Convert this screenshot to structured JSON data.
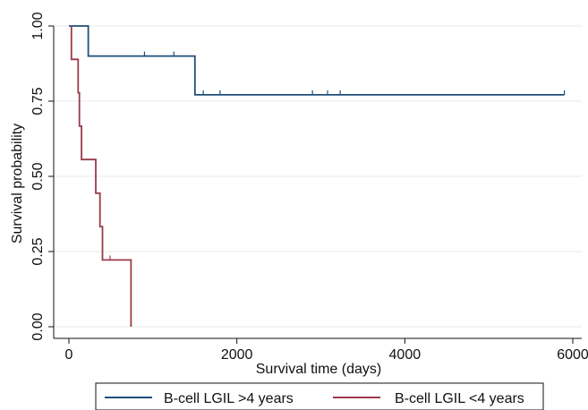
{
  "chart_data": {
    "type": "line",
    "step": true,
    "xlabel": "Survival time (days)",
    "ylabel": "Survival probability",
    "xlim": [
      0,
      6000
    ],
    "ylim": [
      0,
      1
    ],
    "x_ticks": [
      0,
      2000,
      4000,
      6000
    ],
    "x_tick_labels": [
      "0",
      "2000",
      "4000",
      "6000"
    ],
    "y_ticks": [
      0,
      0.25,
      0.5,
      0.75,
      1.0
    ],
    "y_tick_labels": [
      "0.00",
      "0.25",
      "0.50",
      "0.75",
      "1.00"
    ],
    "grid": "horizontal",
    "legend_position": "bottom",
    "series": [
      {
        "name": "B-cell LGIL >4 years",
        "color": "#1f4e79",
        "points": [
          [
            0,
            1.0
          ],
          [
            230,
            1.0
          ],
          [
            230,
            0.9
          ],
          [
            1500,
            0.9
          ],
          [
            1500,
            0.771
          ],
          [
            5900,
            0.771
          ]
        ],
        "end_drop_to_zero": false,
        "censor_marks": [
          [
            900,
            0.9
          ],
          [
            1250,
            0.9
          ],
          [
            1600,
            0.771
          ],
          [
            1800,
            0.771
          ],
          [
            2900,
            0.771
          ],
          [
            3080,
            0.771
          ],
          [
            3230,
            0.771
          ],
          [
            5900,
            0.771
          ]
        ]
      },
      {
        "name": "B-cell LGIL <4 years",
        "color": "#9b3a4a",
        "points": [
          [
            30,
            1.0
          ],
          [
            30,
            0.889
          ],
          [
            110,
            0.889
          ],
          [
            110,
            0.778
          ],
          [
            125,
            0.778
          ],
          [
            125,
            0.667
          ],
          [
            150,
            0.667
          ],
          [
            150,
            0.556
          ],
          [
            320,
            0.556
          ],
          [
            320,
            0.444
          ],
          [
            370,
            0.444
          ],
          [
            370,
            0.333
          ],
          [
            400,
            0.333
          ],
          [
            400,
            0.222
          ],
          [
            740,
            0.222
          ],
          [
            740,
            0.0
          ]
        ],
        "censor_marks": [
          [
            490,
            0.222
          ]
        ]
      }
    ]
  }
}
